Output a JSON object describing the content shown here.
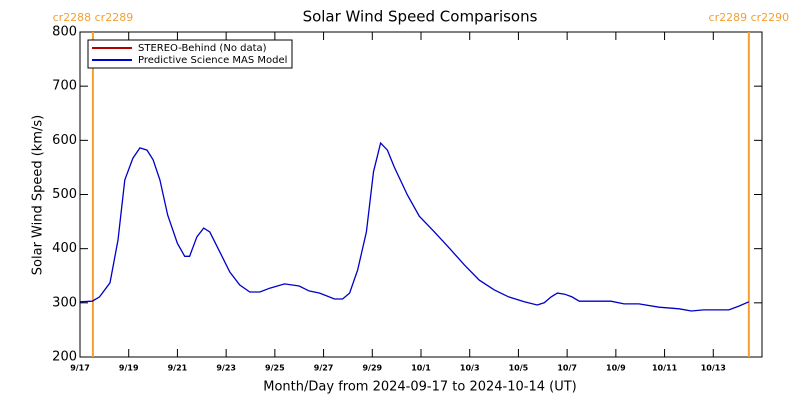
{
  "chart_data": {
    "type": "line",
    "title": "Solar Wind Speed Comparisons",
    "xlabel": "Month/Day from 2024-09-17 to 2024-10-14 (UT)",
    "ylabel": "Solar Wind Speed (km/s)",
    "xlim": [
      0,
      28
    ],
    "xticks": [
      {
        "value": 0,
        "label": "9/17"
      },
      {
        "value": 2,
        "label": "9/19"
      },
      {
        "value": 4,
        "label": "9/21"
      },
      {
        "value": 6,
        "label": "9/23"
      },
      {
        "value": 8,
        "label": "9/25"
      },
      {
        "value": 10,
        "label": "9/27"
      },
      {
        "value": 12,
        "label": "9/29"
      },
      {
        "value": 14,
        "label": "10/1"
      },
      {
        "value": 16,
        "label": "10/3"
      },
      {
        "value": 18,
        "label": "10/5"
      },
      {
        "value": 20,
        "label": "10/7"
      },
      {
        "value": 22,
        "label": "10/9"
      },
      {
        "value": 24,
        "label": "10/11"
      },
      {
        "value": 26,
        "label": "10/13"
      }
    ],
    "ylim": [
      200,
      800
    ],
    "yticks": [
      200,
      300,
      400,
      500,
      600,
      700,
      800
    ],
    "legend": "upper left",
    "annotations": [
      {
        "x": 0.53,
        "label": "cr2288 cr2289",
        "color": "#f5a030"
      },
      {
        "x": 27.46,
        "label": "cr2289 cr2290",
        "color": "#f5a030"
      }
    ],
    "series": [
      {
        "name": "STEREO-Behind (No data)",
        "color": "#b00000",
        "x": [],
        "values": []
      },
      {
        "name": "Predictive Science MAS Model",
        "color": "#0000c8",
        "x": [
          0,
          0.5,
          0.8,
          1.23,
          1.56,
          1.84,
          2.17,
          2.46,
          2.75,
          3.0,
          3.28,
          3.6,
          4.0,
          4.3,
          4.5,
          4.8,
          5.08,
          5.33,
          5.74,
          6.15,
          6.56,
          6.97,
          7.38,
          7.79,
          8.4,
          9.0,
          9.4,
          9.84,
          10.45,
          10.78,
          11.07,
          11.4,
          11.76,
          12.05,
          12.34,
          12.62,
          12.9,
          13.44,
          13.93,
          14.55,
          15.16,
          15.78,
          16.39,
          17.0,
          17.6,
          18.24,
          18.77,
          19.06,
          19.34,
          19.6,
          19.9,
          20.2,
          20.5,
          21.3,
          21.8,
          22.34,
          22.95,
          23.77,
          24.6,
          25.1,
          25.6,
          26.64,
          27.05,
          27.46
        ],
        "values": [
          302,
          303,
          311,
          337,
          416,
          527,
          567,
          586,
          582,
          564,
          527,
          462,
          410,
          386,
          386,
          422,
          438,
          431,
          394,
          357,
          333,
          320,
          320,
          327,
          335,
          331,
          322,
          318,
          307,
          307,
          318,
          361,
          431,
          542,
          595,
          582,
          551,
          499,
          460,
          431,
          401,
          370,
          342,
          324,
          311,
          302,
          296,
          300,
          311,
          318,
          316,
          311,
          303,
          303,
          303,
          298,
          298,
          292,
          289,
          285,
          287,
          287,
          294,
          302
        ]
      }
    ]
  }
}
